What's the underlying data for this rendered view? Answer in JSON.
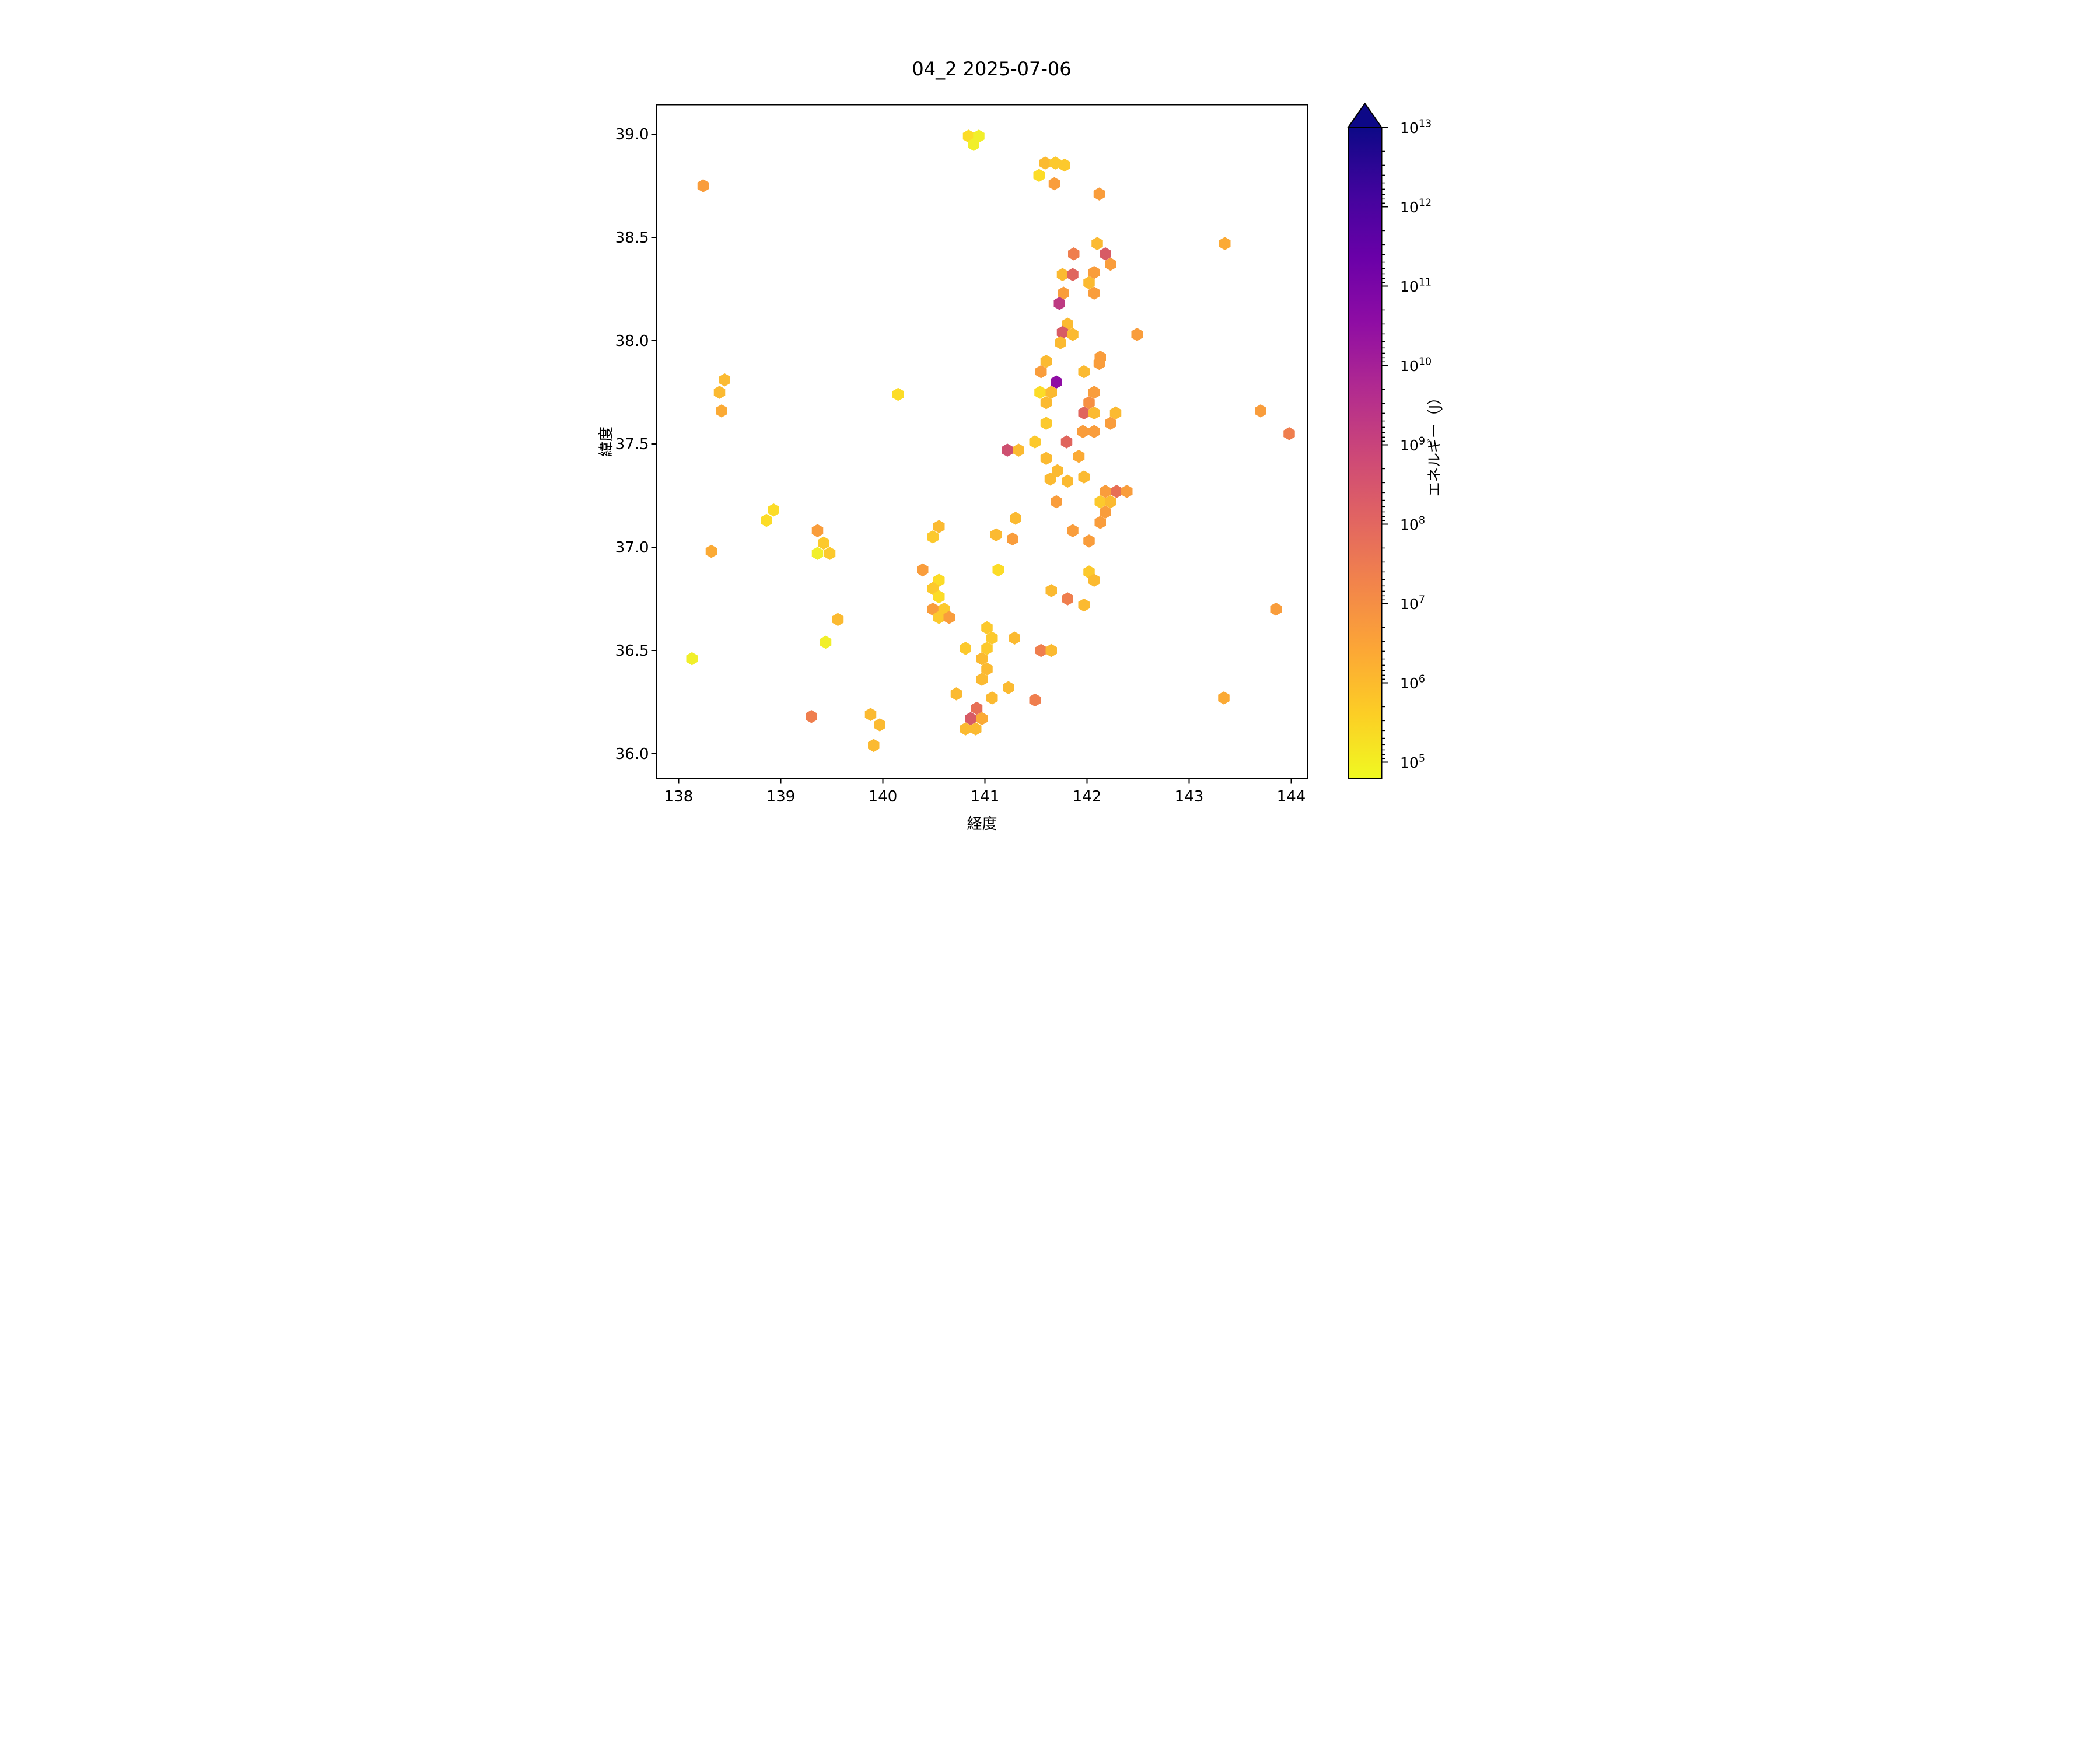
{
  "title": "04_2 2025-07-06",
  "chart_data": {
    "type": "hexbin",
    "title": "04_2 2025-07-06",
    "xlabel": "経度",
    "ylabel": "緯度",
    "xlim": [
      137.78,
      144.16
    ],
    "ylim": [
      35.88,
      39.14
    ],
    "xticks": [
      138,
      139,
      140,
      141,
      142,
      143,
      144
    ],
    "yticks": [
      "36.0",
      "36.5",
      "37.0",
      "37.5",
      "38.0",
      "38.5",
      "39.0"
    ],
    "grid": false,
    "legend_position": "none",
    "colorbar": {
      "label": "エネルギー（J）",
      "scale": "log",
      "tick_exponents": [
        13,
        12,
        11,
        10,
        9,
        8,
        7,
        6,
        5
      ],
      "vmin": 62000.0,
      "vmax": 10000000000000.0,
      "extend": "max",
      "colormap": "plasma_r",
      "gradient_top_to_bottom": [
        "#0d0887",
        "#41049d",
        "#6a00a8",
        "#8f0da4",
        "#b12a90",
        "#cc4778",
        "#e16462",
        "#f2844b",
        "#fca636",
        "#fcce25",
        "#f0f921"
      ]
    },
    "palette": {
      "Y0": {
        "name": "bright-yellow",
        "color": "#f1ef2a",
        "energy_j": 120000.0
      },
      "Y1": {
        "name": "yellow",
        "color": "#fcdc27",
        "energy_j": 300000.0
      },
      "Y2": {
        "name": "yellow-amber",
        "color": "#fcc92d",
        "energy_j": 600000.0
      },
      "A": {
        "name": "amber",
        "color": "#fbba31",
        "energy_j": 1200000.0
      },
      "A2": {
        "name": "light-orange",
        "color": "#fbaa35",
        "energy_j": 2500000.0
      },
      "O": {
        "name": "orange",
        "color": "#f99d3c",
        "energy_j": 5000000.0
      },
      "O2": {
        "name": "deep-orange",
        "color": "#f68f43",
        "energy_j": 12000000.0
      },
      "B": {
        "name": "burnt-orange",
        "color": "#ef7e4e",
        "energy_j": 30000000.0
      },
      "S": {
        "name": "salmon",
        "color": "#e76f55",
        "energy_j": 70000000.0
      },
      "S2": {
        "name": "salmon-red",
        "color": "#e0655d",
        "energy_j": 150000000.0
      },
      "R": {
        "name": "red",
        "color": "#d75b65",
        "energy_j": 280000000.0
      },
      "P": {
        "name": "pink-red",
        "color": "#cd4f70",
        "energy_j": 500000000.0
      },
      "M": {
        "name": "magenta",
        "color": "#bd3a82",
        "energy_j": 2000000000.0
      },
      "V": {
        "name": "purple",
        "color": "#8f0da4",
        "energy_j": 40000000000.0
      }
    },
    "points": [
      [
        140.84,
        38.99,
        "Y1"
      ],
      [
        140.94,
        38.99,
        "Y0"
      ],
      [
        140.89,
        38.95,
        "Y0"
      ],
      [
        138.24,
        38.75,
        "O"
      ],
      [
        141.59,
        38.86,
        "A"
      ],
      [
        141.69,
        38.86,
        "Y2"
      ],
      [
        141.78,
        38.85,
        "Y2"
      ],
      [
        141.53,
        38.8,
        "Y1"
      ],
      [
        141.68,
        38.76,
        "O"
      ],
      [
        142.12,
        38.71,
        "O"
      ],
      [
        143.35,
        38.47,
        "A2"
      ],
      [
        142.1,
        38.47,
        "A"
      ],
      [
        141.87,
        38.42,
        "B"
      ],
      [
        142.18,
        38.42,
        "R"
      ],
      [
        142.23,
        38.37,
        "O"
      ],
      [
        141.76,
        38.32,
        "A"
      ],
      [
        141.86,
        38.32,
        "S2"
      ],
      [
        142.07,
        38.33,
        "O"
      ],
      [
        142.02,
        38.28,
        "A"
      ],
      [
        141.77,
        38.23,
        "O"
      ],
      [
        142.07,
        38.23,
        "O"
      ],
      [
        141.73,
        38.18,
        "M"
      ],
      [
        141.81,
        38.08,
        "A"
      ],
      [
        141.76,
        38.04,
        "R"
      ],
      [
        141.86,
        38.03,
        "A"
      ],
      [
        142.49,
        38.03,
        "O"
      ],
      [
        141.74,
        37.99,
        "A"
      ],
      [
        142.13,
        37.92,
        "O"
      ],
      [
        141.6,
        37.9,
        "A"
      ],
      [
        141.55,
        37.85,
        "O"
      ],
      [
        142.12,
        37.89,
        "O"
      ],
      [
        141.97,
        37.85,
        "A"
      ],
      [
        141.7,
        37.8,
        "V"
      ],
      [
        141.54,
        37.75,
        "Y1"
      ],
      [
        141.65,
        37.75,
        "A"
      ],
      [
        141.6,
        37.7,
        "A"
      ],
      [
        142.07,
        37.75,
        "O"
      ],
      [
        142.02,
        37.7,
        "O2"
      ],
      [
        138.45,
        37.81,
        "A"
      ],
      [
        138.4,
        37.75,
        "A"
      ],
      [
        138.42,
        37.66,
        "A2"
      ],
      [
        140.15,
        37.74,
        "Y1"
      ],
      [
        141.97,
        37.65,
        "S2"
      ],
      [
        142.07,
        37.65,
        "A"
      ],
      [
        142.28,
        37.65,
        "A"
      ],
      [
        142.23,
        37.6,
        "O"
      ],
      [
        141.6,
        37.6,
        "Y2"
      ],
      [
        141.96,
        37.56,
        "O"
      ],
      [
        142.07,
        37.56,
        "O"
      ],
      [
        143.7,
        37.66,
        "O"
      ],
      [
        143.98,
        37.55,
        "B"
      ],
      [
        141.49,
        37.51,
        "Y2"
      ],
      [
        141.8,
        37.51,
        "S2"
      ],
      [
        141.22,
        37.47,
        "P"
      ],
      [
        141.33,
        37.47,
        "A"
      ],
      [
        141.6,
        37.43,
        "A"
      ],
      [
        141.92,
        37.44,
        "A2"
      ],
      [
        141.71,
        37.37,
        "A"
      ],
      [
        141.64,
        37.33,
        "A"
      ],
      [
        141.81,
        37.32,
        "A"
      ],
      [
        141.97,
        37.34,
        "A"
      ],
      [
        142.18,
        37.27,
        "O"
      ],
      [
        142.29,
        37.27,
        "S"
      ],
      [
        142.39,
        37.27,
        "O"
      ],
      [
        142.13,
        37.22,
        "Y2"
      ],
      [
        142.23,
        37.22,
        "A"
      ],
      [
        141.7,
        37.22,
        "O"
      ],
      [
        142.18,
        37.17,
        "O"
      ],
      [
        142.13,
        37.12,
        "O"
      ],
      [
        141.86,
        37.08,
        "O"
      ],
      [
        142.02,
        37.03,
        "O"
      ],
      [
        138.93,
        37.18,
        "Y1"
      ],
      [
        138.86,
        37.13,
        "Y1"
      ],
      [
        139.36,
        37.08,
        "O"
      ],
      [
        139.42,
        37.02,
        "Y2"
      ],
      [
        139.36,
        36.97,
        "Y0"
      ],
      [
        139.48,
        36.97,
        "Y2"
      ],
      [
        138.32,
        36.98,
        "A2"
      ],
      [
        140.55,
        37.1,
        "A"
      ],
      [
        140.49,
        37.05,
        "Y2"
      ],
      [
        141.11,
        37.06,
        "A"
      ],
      [
        141.3,
        37.14,
        "A"
      ],
      [
        141.27,
        37.04,
        "O"
      ],
      [
        140.39,
        36.89,
        "O"
      ],
      [
        141.13,
        36.89,
        "Y1"
      ],
      [
        140.55,
        36.84,
        "Y1"
      ],
      [
        140.49,
        36.8,
        "Y2"
      ],
      [
        140.55,
        36.76,
        "Y1"
      ],
      [
        140.49,
        36.7,
        "O"
      ],
      [
        140.6,
        36.7,
        "Y2"
      ],
      [
        140.55,
        36.66,
        "Y2"
      ],
      [
        140.65,
        36.66,
        "O"
      ],
      [
        139.56,
        36.65,
        "A"
      ],
      [
        142.02,
        36.88,
        "Y2"
      ],
      [
        142.07,
        36.84,
        "A"
      ],
      [
        141.65,
        36.79,
        "A"
      ],
      [
        141.81,
        36.75,
        "B"
      ],
      [
        141.97,
        36.72,
        "A"
      ],
      [
        141.02,
        36.61,
        "Y2"
      ],
      [
        141.07,
        36.56,
        "Y2"
      ],
      [
        141.29,
        36.56,
        "A"
      ],
      [
        139.44,
        36.54,
        "Y0"
      ],
      [
        138.13,
        36.46,
        "Y0"
      ],
      [
        140.81,
        36.51,
        "Y2"
      ],
      [
        141.02,
        36.51,
        "Y2"
      ],
      [
        141.55,
        36.5,
        "B"
      ],
      [
        141.65,
        36.5,
        "A"
      ],
      [
        140.97,
        36.46,
        "A"
      ],
      [
        141.02,
        36.41,
        "A"
      ],
      [
        140.97,
        36.36,
        "A"
      ],
      [
        141.23,
        36.32,
        "A"
      ],
      [
        141.07,
        36.27,
        "A"
      ],
      [
        141.49,
        36.26,
        "B"
      ],
      [
        140.92,
        36.22,
        "S"
      ],
      [
        140.86,
        36.17,
        "R"
      ],
      [
        140.97,
        36.17,
        "A2"
      ],
      [
        140.81,
        36.12,
        "A"
      ],
      [
        140.91,
        36.12,
        "A"
      ],
      [
        139.3,
        36.18,
        "B"
      ],
      [
        139.88,
        36.19,
        "A"
      ],
      [
        139.97,
        36.14,
        "A"
      ],
      [
        139.91,
        36.04,
        "A"
      ],
      [
        140.72,
        36.29,
        "A"
      ],
      [
        143.34,
        36.27,
        "A2"
      ],
      [
        143.85,
        36.7,
        "O"
      ]
    ]
  }
}
